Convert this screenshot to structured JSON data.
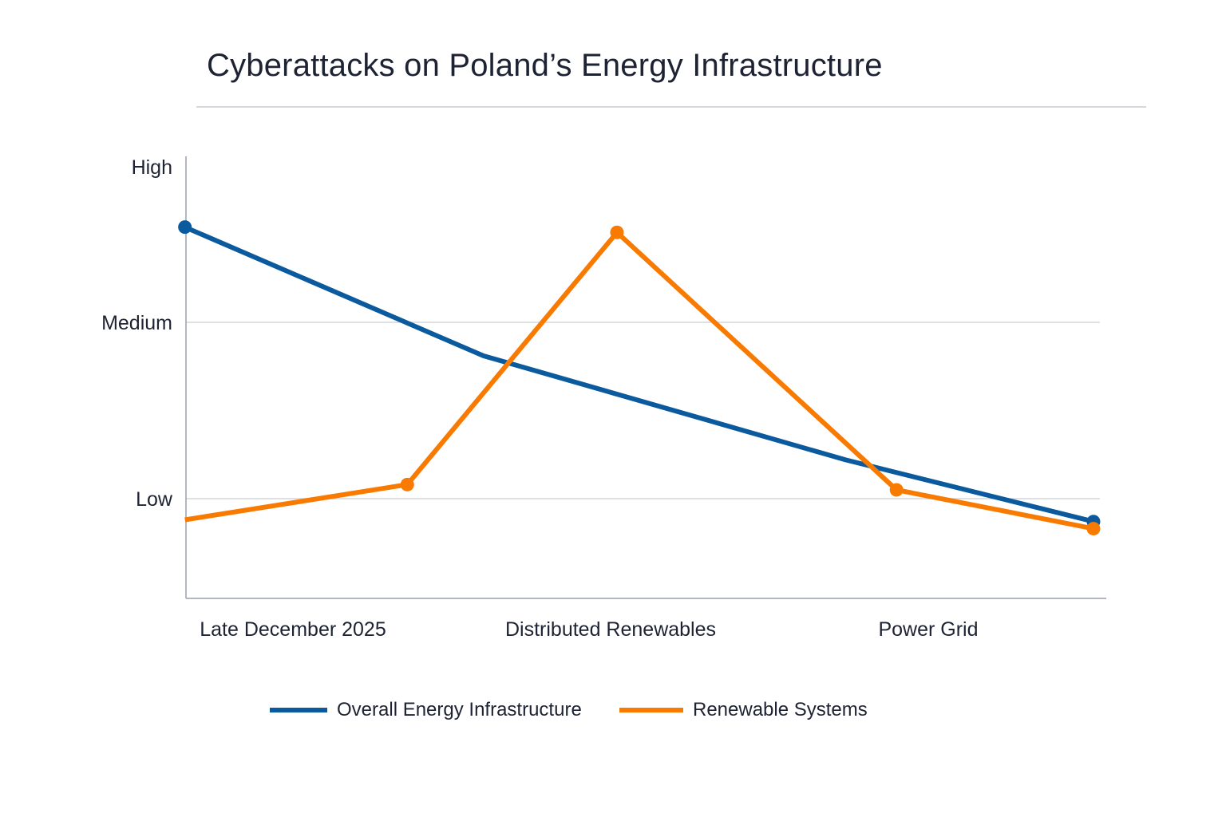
{
  "chart_data": {
    "type": "line",
    "title": "Cyberattacks on Poland’s Energy Infrastructure",
    "xlabel": "",
    "ylabel": "",
    "x_ticks": [
      {
        "label": "Late December 2025",
        "x": 0
      },
      {
        "label": "Distributed Renewables",
        "x": 1
      },
      {
        "label": "Power Grid",
        "x": 2
      }
    ],
    "y_ticks": [
      {
        "label": "High",
        "value": 3
      },
      {
        "label": "Medium",
        "value": 2
      },
      {
        "label": "Low",
        "value": 1
      }
    ],
    "ylim": [
      0.45,
      3.1
    ],
    "grid": "horizontal at Medium and Low",
    "legend_position": "bottom",
    "series": [
      {
        "name": "Overall Energy Infrastructure",
        "color": "#0b5a9e",
        "points": [
          {
            "x": -0.34,
            "y": 2.54,
            "marker": true
          },
          {
            "x": 0.6,
            "y": 1.81,
            "marker": false
          },
          {
            "x": 1.74,
            "y": 1.22,
            "marker": false
          },
          {
            "x": 2.52,
            "y": 0.87,
            "marker": true
          }
        ]
      },
      {
        "name": "Renewable Systems",
        "color": "#f97a00",
        "points": [
          {
            "x": -0.34,
            "y": 0.88,
            "marker": false
          },
          {
            "x": 0.36,
            "y": 1.08,
            "marker": true
          },
          {
            "x": 1.02,
            "y": 2.51,
            "marker": true
          },
          {
            "x": 1.9,
            "y": 1.05,
            "marker": true
          },
          {
            "x": 2.52,
            "y": 0.83,
            "marker": true
          }
        ]
      }
    ]
  }
}
